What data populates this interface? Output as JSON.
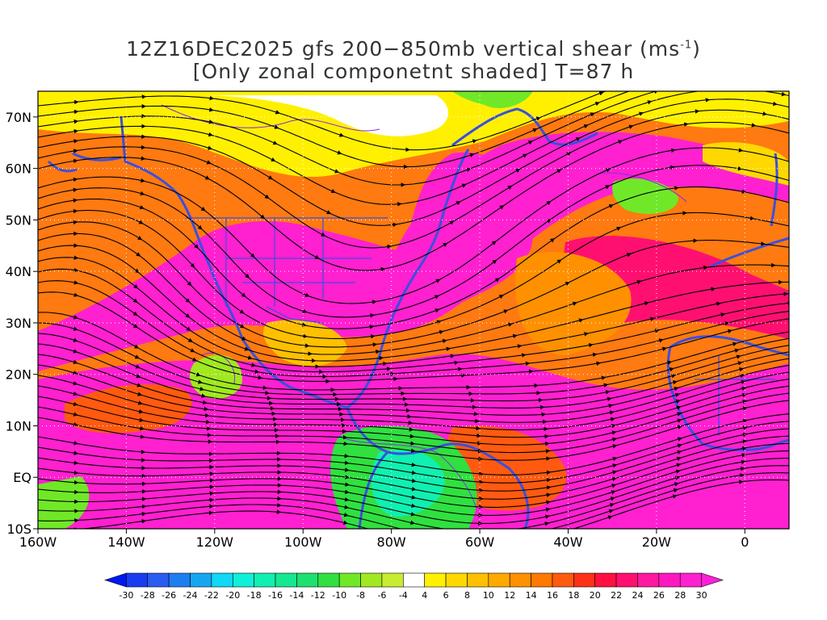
{
  "title": {
    "line1_prefix": "12Z16DEC2025 gfs 200−850mb vertical shear (ms",
    "line1_sup": "-1",
    "line1_suffix": ")",
    "line2": "[Only zonal componetnt shaded] T=87 h"
  },
  "map": {
    "lon_range": [
      -160,
      10
    ],
    "lat_range": [
      -10,
      75
    ],
    "lon_ticks": [
      "160W",
      "140W",
      "120W",
      "100W",
      "80W",
      "60W",
      "40W",
      "20W",
      "0"
    ],
    "lat_ticks": [
      "70N",
      "60N",
      "50N",
      "40N",
      "30N",
      "20N",
      "10N",
      "EQ",
      "10S"
    ],
    "projection": "cylindrical lat-lon",
    "overlay": "streamlines of vertical shear vector",
    "coastline_color": "#3a4fe0"
  },
  "colorbar": {
    "labels": [
      "-30",
      "-28",
      "-26",
      "-24",
      "-22",
      "-20",
      "-18",
      "-16",
      "-14",
      "-12",
      "-10",
      "-8",
      "-6",
      "-4",
      "4",
      "6",
      "8",
      "10",
      "12",
      "14",
      "16",
      "18",
      "20",
      "22",
      "24",
      "26",
      "28",
      "30"
    ],
    "colors": [
      "#0018f0",
      "#1a3cf0",
      "#2a5cf0",
      "#1e7ef0",
      "#16a6f0",
      "#10d8f5",
      "#10f0d8",
      "#10f0b0",
      "#14e890",
      "#1ee070",
      "#30e040",
      "#70e828",
      "#a0e820",
      "#c8ec30",
      "#ffffff",
      "#fff000",
      "#ffd800",
      "#ffc000",
      "#ffa800",
      "#ff9000",
      "#ff7800",
      "#ff5a10",
      "#ff3018",
      "#ff1040",
      "#ff1070",
      "#ff18a0",
      "#ff18c0",
      "#ff20d0",
      "#ff20d8"
    ]
  }
}
